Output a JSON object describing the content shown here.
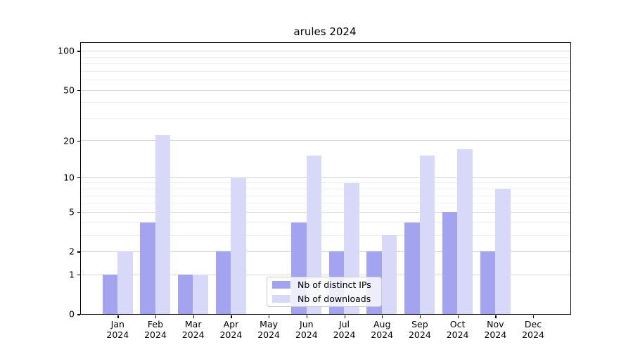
{
  "title": "arules 2024",
  "chart_data": {
    "type": "bar",
    "title": "arules 2024",
    "categories": [
      "Jan",
      "Feb",
      "Mar",
      "Apr",
      "May",
      "Jun",
      "Jul",
      "Aug",
      "Sep",
      "Oct",
      "Nov",
      "Dec"
    ],
    "year": "2024",
    "series": [
      {
        "name": "Nb of distinct IPs",
        "color": "#a3a3ef",
        "values": [
          1,
          4,
          1,
          2,
          0,
          4,
          2,
          2,
          4,
          5,
          2,
          0
        ]
      },
      {
        "name": "Nb of downloads",
        "color": "#d8d8f8",
        "values": [
          2,
          22,
          1,
          10,
          0,
          15,
          9,
          3,
          15,
          17,
          8,
          0
        ]
      }
    ],
    "y_axis": {
      "scale": "log1p",
      "tick_labels": [
        "0",
        "1",
        "2",
        "5",
        "10",
        "20",
        "50",
        "100"
      ],
      "major_ticks": [
        0,
        1,
        2,
        5,
        10,
        20,
        50,
        100
      ],
      "minor_ticks": [
        3,
        4,
        6,
        7,
        8,
        9,
        30,
        40,
        60,
        70,
        80,
        90
      ],
      "range_top": 114
    },
    "x_axis": {
      "tick_label_format": "month over year"
    },
    "grid": true,
    "legend": {
      "position": "lower center inside plot",
      "entries": [
        "Nb of distinct IPs",
        "Nb of downloads"
      ]
    }
  },
  "colors": {
    "distinct_ips_bar": "#a3a3ef",
    "downloads_bar": "#d8d8f8",
    "grid_major": "#d6d6d6",
    "grid_minor": "#f0f0f0",
    "axis": "#000000",
    "background": "#ffffff"
  }
}
